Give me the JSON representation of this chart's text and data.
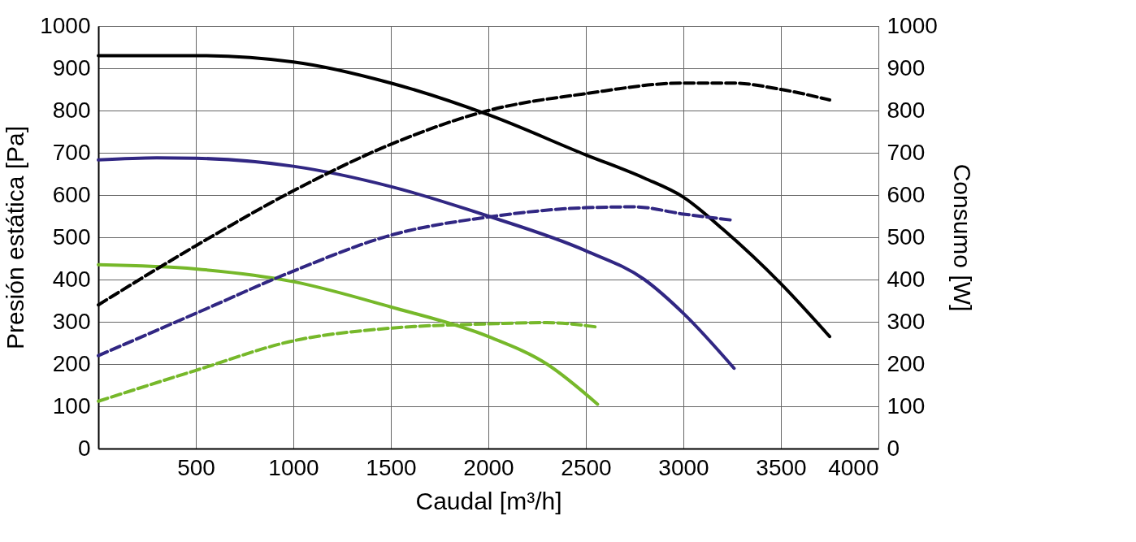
{
  "chart_data": {
    "type": "line",
    "xlabel": "Caudal [m³/h]",
    "ylabel": "Presión estática [Pa]",
    "y2label": "Consumo [W]",
    "xlim": [
      0,
      4000
    ],
    "xticks": [
      500,
      1000,
      1500,
      2000,
      2500,
      3000,
      3500,
      4000
    ],
    "ylim": [
      0,
      1000
    ],
    "yticks": [
      0,
      100,
      200,
      300,
      400,
      500,
      600,
      700,
      800,
      900,
      1000
    ],
    "y2lim": [
      0,
      1000
    ],
    "y2ticks": [
      0,
      100,
      200,
      300,
      400,
      500,
      600,
      700,
      800,
      900,
      1000
    ],
    "grid": true,
    "series": [
      {
        "color": "#000000",
        "line_style": "solid",
        "x": [
          0,
          500,
          1000,
          1500,
          2000,
          2500,
          2800,
          3000,
          3200,
          3500,
          3750
        ],
        "values": [
          930,
          930,
          915,
          865,
          790,
          695,
          640,
          595,
          520,
          390,
          265
        ]
      },
      {
        "color": "#312783",
        "line_style": "solid",
        "x": [
          0,
          300,
          500,
          1000,
          1500,
          2000,
          2500,
          2800,
          3000,
          3260
        ],
        "values": [
          683,
          688,
          687,
          668,
          620,
          550,
          468,
          400,
          320,
          190
        ]
      },
      {
        "color": "#76b82a",
        "line_style": "solid",
        "x": [
          0,
          500,
          1000,
          1500,
          2000,
          2300,
          2560
        ],
        "values": [
          435,
          425,
          395,
          335,
          265,
          200,
          105
        ]
      },
      {
        "color": "#000000",
        "line_style": "dashed",
        "axis": "y2",
        "x": [
          0,
          500,
          1000,
          1500,
          2000,
          2500,
          3000,
          3250,
          3500,
          3750
        ],
        "values": [
          340,
          480,
          610,
          720,
          800,
          840,
          865,
          865,
          850,
          825
        ]
      },
      {
        "color": "#312783",
        "line_style": "dashed",
        "axis": "y2",
        "x": [
          0,
          500,
          1000,
          1500,
          2000,
          2500,
          2750,
          3000,
          3260
        ],
        "values": [
          220,
          320,
          420,
          505,
          548,
          570,
          572,
          555,
          540
        ]
      },
      {
        "color": "#76b82a",
        "line_style": "dashed",
        "axis": "y2",
        "x": [
          0,
          500,
          1000,
          1500,
          2000,
          2300,
          2550
        ],
        "values": [
          112,
          185,
          255,
          285,
          295,
          298,
          288
        ]
      }
    ]
  }
}
